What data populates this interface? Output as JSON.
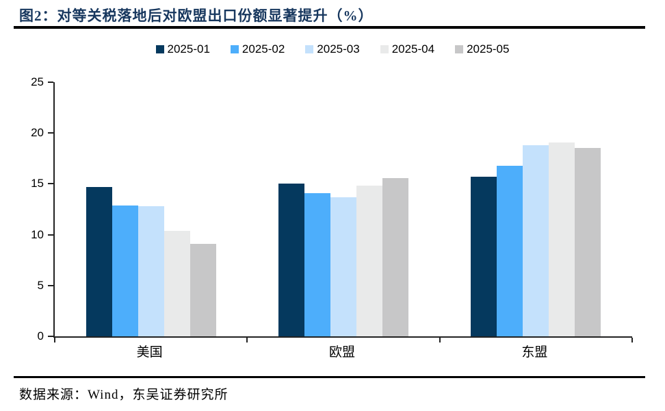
{
  "title": "图2：对等关税落地后对欧盟出口份额显著提升（%）",
  "footer": "数据来源：Wind，东吴证券研究所",
  "colors": {
    "title_text": "#17375E",
    "rule": "#000000",
    "axis": "#222222"
  },
  "chart_data": {
    "type": "bar",
    "title": "图2：对等关税落地后对欧盟出口份额显著提升（%）",
    "xlabel": "",
    "ylabel": "",
    "categories": [
      "美国",
      "欧盟",
      "东盟"
    ],
    "series": [
      {
        "name": "2025-01",
        "color": "#05395E",
        "values": [
          14.7,
          15.0,
          15.7
        ]
      },
      {
        "name": "2025-02",
        "color": "#4DAEFB",
        "values": [
          12.9,
          14.1,
          16.8
        ]
      },
      {
        "name": "2025-03",
        "color": "#C4E1FC",
        "values": [
          12.8,
          13.7,
          18.8
        ]
      },
      {
        "name": "2025-04",
        "color": "#E9EAEA",
        "values": [
          10.4,
          14.8,
          19.1
        ]
      },
      {
        "name": "2025-05",
        "color": "#C7C7C8",
        "values": [
          9.1,
          15.6,
          18.5
        ]
      }
    ],
    "ylim": [
      0,
      25
    ],
    "yticks": [
      0,
      5,
      10,
      15,
      20,
      25
    ],
    "legend_position": "top",
    "grid": false,
    "source_note": "数据来源：Wind，东吴证券研究所"
  }
}
